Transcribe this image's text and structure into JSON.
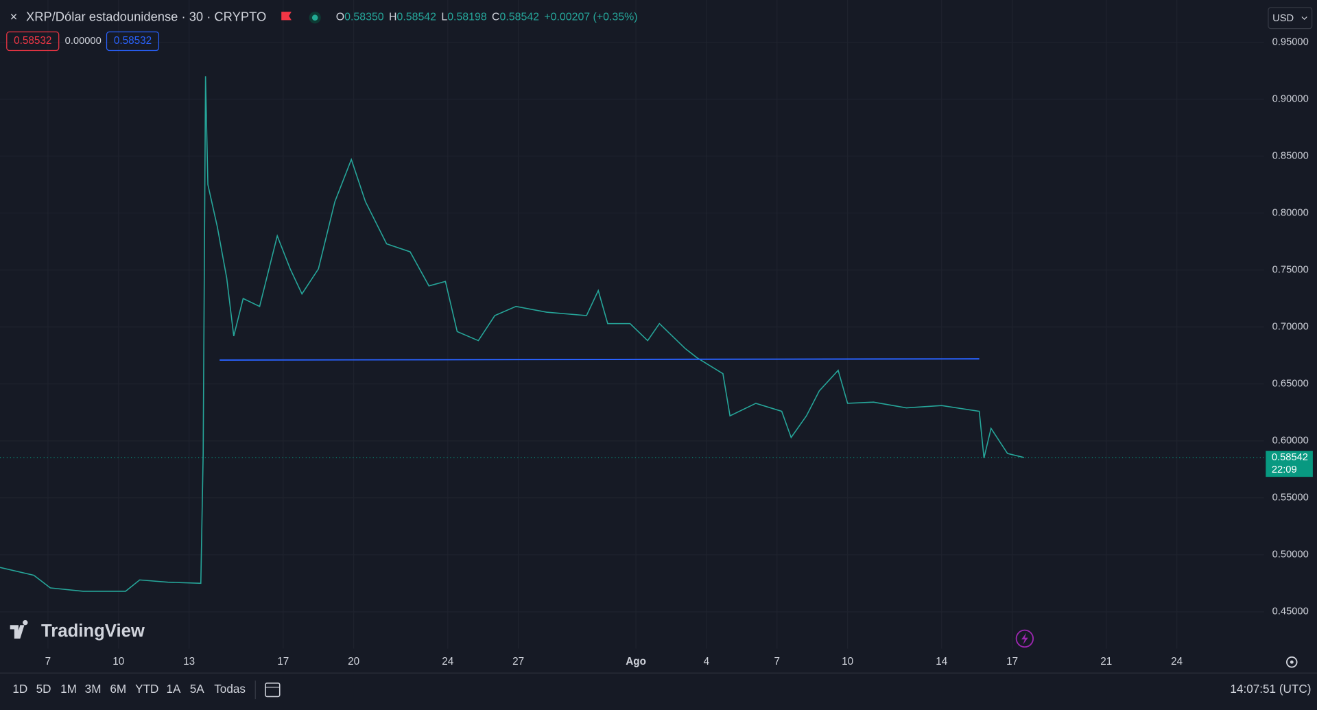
{
  "header": {
    "symbol": "XRP/Dólar estadounidense · 30 · CRYPTO",
    "ohlc": [
      {
        "label": "O",
        "value": "0.58350"
      },
      {
        "label": "H",
        "value": "0.58542"
      },
      {
        "label": "L",
        "value": "0.58198"
      },
      {
        "label": "C",
        "value": "0.58542"
      }
    ],
    "change": "+0.00207 (+0.35%)",
    "sell": "0.58532",
    "spread": "0.00000",
    "buy": "0.58532",
    "currency": "USD"
  },
  "logo": "TradingView",
  "toolbar": {
    "ranges": [
      "1D",
      "5D",
      "1M",
      "3M",
      "6M",
      "YTD",
      "1A",
      "5A",
      "Todas"
    ],
    "time": "14:07:51 (UTC)"
  },
  "chart_data": {
    "type": "line",
    "series": [
      {
        "color": "#26a69a",
        "x": [
          4.96,
          6.4,
          7.1,
          8.5,
          10.3,
          10.9,
          12.1,
          13.5,
          13.6,
          13.7,
          13.8,
          14.2,
          14.6,
          14.9,
          15.3,
          16.0,
          16.75,
          17.3,
          17.8,
          18.5,
          19.2,
          19.9,
          20.5,
          21.4,
          22.4,
          23.2,
          23.9,
          24.4,
          25.3,
          26.0,
          26.9,
          28.2,
          29.9,
          30.4,
          30.8,
          31.75,
          32.5,
          33.0,
          34.1,
          34.6,
          35.7,
          36.0,
          37.1,
          38.2,
          38.6,
          39.25,
          39.8,
          40.6,
          41.0,
          42.1,
          43.5,
          45.0,
          46.6,
          46.8,
          47.1,
          47.8,
          48.5
        ],
        "values": [
          0.489,
          0.482,
          0.471,
          0.468,
          0.468,
          0.478,
          0.476,
          0.475,
          0.589,
          0.92,
          0.825,
          0.788,
          0.743,
          0.692,
          0.725,
          0.718,
          0.78,
          0.751,
          0.729,
          0.751,
          0.81,
          0.847,
          0.81,
          0.773,
          0.766,
          0.736,
          0.74,
          0.696,
          0.688,
          0.71,
          0.718,
          0.713,
          0.71,
          0.732,
          0.703,
          0.703,
          0.688,
          0.703,
          0.681,
          0.673,
          0.659,
          0.622,
          0.633,
          0.626,
          0.603,
          0.622,
          0.644,
          0.662,
          0.633,
          0.634,
          0.629,
          0.631,
          0.626,
          0.585,
          0.611,
          0.589,
          0.58542
        ]
      }
    ],
    "trendline": {
      "color": "#2962ff",
      "x": [
        14.3,
        46.6
      ],
      "values": [
        0.671,
        0.672
      ]
    },
    "last_price": 0.58542,
    "countdown": "22:09",
    "last_price_color": "#089981",
    "xlim": [
      4.96,
      58.71
    ],
    "ylim": [
      0.397,
      0.987
    ],
    "xticks": [
      7,
      10,
      13,
      17,
      20,
      24,
      27,
      {
        "value": 32,
        "label": "Ago"
      },
      {
        "value": 35,
        "label": "4"
      },
      {
        "value": 38,
        "label": "7"
      },
      {
        "value": 41,
        "label": "10"
      },
      {
        "value": 45,
        "label": "14"
      },
      {
        "value": 48,
        "label": "17"
      },
      {
        "value": 52,
        "label": "21"
      },
      {
        "value": 55,
        "label": "24"
      }
    ],
    "yticks": [
      {
        "value": 0.45,
        "label": "0.45000"
      },
      {
        "value": 0.5,
        "label": "0.50000"
      },
      {
        "value": 0.55,
        "label": "0.55000"
      },
      {
        "value": 0.6,
        "label": "0.60000"
      },
      {
        "value": 0.65,
        "label": "0.65000"
      },
      {
        "value": 0.7,
        "label": "0.70000"
      },
      {
        "value": 0.75,
        "label": "0.75000"
      },
      {
        "value": 0.8,
        "label": "0.80000"
      },
      {
        "value": 0.85,
        "label": "0.85000"
      },
      {
        "value": 0.9,
        "label": "0.90000"
      },
      {
        "value": 0.95,
        "label": "0.95000"
      }
    ],
    "grid": true
  }
}
